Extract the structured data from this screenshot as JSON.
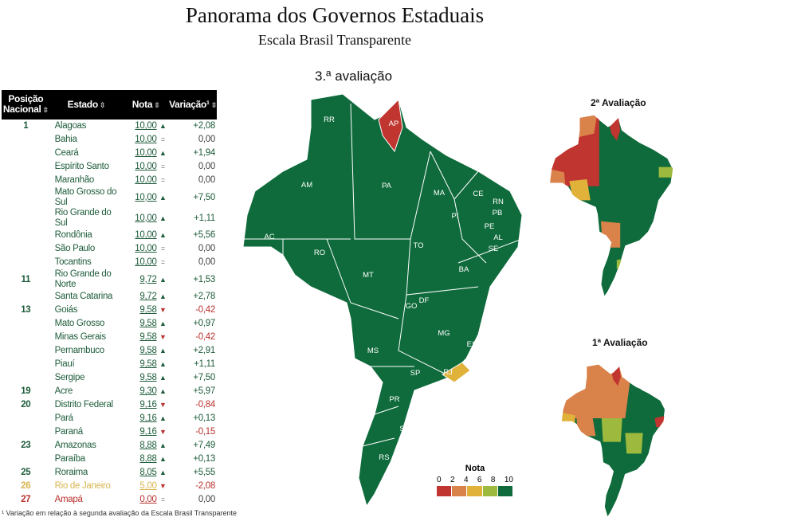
{
  "header": {
    "title": "Panorama dos Governos Estaduais",
    "subtitle": "Escala Brasil Transparente",
    "map_title": "3.ª avaliação"
  },
  "table": {
    "columns": [
      "Posição Nacional",
      "Estado",
      "Nota",
      "Variação¹"
    ],
    "sort_icon": "sort-arrows-icon",
    "rows": [
      {
        "pos": "1",
        "estado": "Alagoas",
        "nota": "10,00",
        "trend": "up",
        "var": "+2,08"
      },
      {
        "pos": "",
        "estado": "Bahia",
        "nota": "10,00",
        "trend": "eq",
        "var": "0,00"
      },
      {
        "pos": "",
        "estado": "Ceará",
        "nota": "10,00",
        "trend": "up",
        "var": "+1,94"
      },
      {
        "pos": "",
        "estado": "Espírito Santo",
        "nota": "10,00",
        "trend": "eq",
        "var": "0,00"
      },
      {
        "pos": "",
        "estado": "Maranhão",
        "nota": "10,00",
        "trend": "eq",
        "var": "0,00"
      },
      {
        "pos": "",
        "estado": "Mato Grosso do Sul",
        "nota": "10,00",
        "trend": "up",
        "var": "+7,50"
      },
      {
        "pos": "",
        "estado": "Rio Grande do Sul",
        "nota": "10,00",
        "trend": "up",
        "var": "+1,11"
      },
      {
        "pos": "",
        "estado": "Rondônia",
        "nota": "10,00",
        "trend": "up",
        "var": "+5,56"
      },
      {
        "pos": "",
        "estado": "São Paulo",
        "nota": "10,00",
        "trend": "eq",
        "var": "0,00"
      },
      {
        "pos": "",
        "estado": "Tocantins",
        "nota": "10,00",
        "trend": "eq",
        "var": "0,00"
      },
      {
        "pos": "11",
        "estado": "Rio Grande do Norte",
        "nota": "9,72",
        "trend": "up",
        "var": "+1,53"
      },
      {
        "pos": "",
        "estado": "Santa Catarina",
        "nota": "9,72",
        "trend": "up",
        "var": "+2,78"
      },
      {
        "pos": "13",
        "estado": "Goiás",
        "nota": "9,58",
        "trend": "dn",
        "var": "-0,42"
      },
      {
        "pos": "",
        "estado": "Mato Grosso",
        "nota": "9,58",
        "trend": "up",
        "var": "+0,97"
      },
      {
        "pos": "",
        "estado": "Minas Gerais",
        "nota": "9,58",
        "trend": "dn",
        "var": "-0,42"
      },
      {
        "pos": "",
        "estado": "Pernambuco",
        "nota": "9,58",
        "trend": "up",
        "var": "+2,91"
      },
      {
        "pos": "",
        "estado": "Piauí",
        "nota": "9,58",
        "trend": "up",
        "var": "+1,11"
      },
      {
        "pos": "",
        "estado": "Sergipe",
        "nota": "9,58",
        "trend": "up",
        "var": "+7,50"
      },
      {
        "pos": "19",
        "estado": "Acre",
        "nota": "9,30",
        "trend": "up",
        "var": "+5,97"
      },
      {
        "pos": "20",
        "estado": "Distrito Federal",
        "nota": "9,16",
        "trend": "dn",
        "var": "-0,84"
      },
      {
        "pos": "",
        "estado": "Pará",
        "nota": "9,16",
        "trend": "up",
        "var": "+0,13"
      },
      {
        "pos": "",
        "estado": "Paraná",
        "nota": "9,16",
        "trend": "dn",
        "var": "-0,15"
      },
      {
        "pos": "23",
        "estado": "Amazonas",
        "nota": "8,88",
        "trend": "up",
        "var": "+7,49"
      },
      {
        "pos": "",
        "estado": "Paraíba",
        "nota": "8,88",
        "trend": "up",
        "var": "+0,13"
      },
      {
        "pos": "25",
        "estado": "Roraima",
        "nota": "8,05",
        "trend": "up",
        "var": "+5,55"
      },
      {
        "pos": "26",
        "estado": "Rio de Janeiro",
        "nota": "5,00",
        "trend": "dn",
        "var": "-2,08",
        "color": "#d8b550"
      },
      {
        "pos": "27",
        "estado": "Amapá",
        "nota": "0,00",
        "trend": "eq",
        "var": "0,00",
        "color": "#b8332f"
      }
    ],
    "footnote": "¹ Variação em relação à segunda avaliação da Escala Brasil Transparente"
  },
  "maps": {
    "second_title": "2ª Avaliação",
    "first_title": "1ª Avaliação",
    "state_labels": [
      "RR",
      "AP",
      "AM",
      "PA",
      "MA",
      "CE",
      "RN",
      "PB",
      "PE",
      "AL",
      "SE",
      "PI",
      "AC",
      "RO",
      "TO",
      "BA",
      "MT",
      "GO",
      "DF",
      "MG",
      "ES",
      "MS",
      "SP",
      "RJ",
      "PR",
      "SC",
      "RS"
    ]
  },
  "legend": {
    "title": "Nota",
    "ticks": [
      "0",
      "2",
      "4",
      "6",
      "8",
      "10"
    ],
    "colors": [
      "#c0352f",
      "#d9824a",
      "#e0b23a",
      "#9dba3e",
      "#0f6b3c"
    ]
  }
}
